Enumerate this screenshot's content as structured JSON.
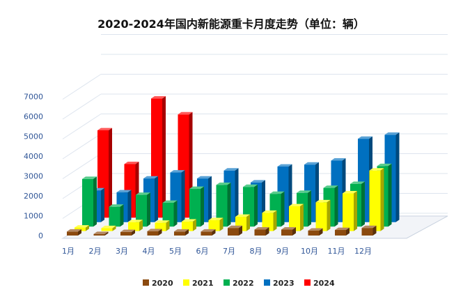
{
  "chart_data": {
    "type": "bar",
    "title": "2020-2024年国内新能源重卡月度走势（单位：辆）",
    "categories": [
      "1月",
      "2月",
      "3月",
      "4月",
      "5月",
      "6月",
      "7月",
      "8月",
      "9月",
      "10月",
      "11月",
      "12月"
    ],
    "yticks": [
      "0",
      "1000",
      "2000",
      "3000",
      "4000",
      "5000",
      "6000",
      "7000"
    ],
    "ylim": [
      0,
      7000
    ],
    "grid": true,
    "legend_position": "bottom",
    "series": [
      {
        "name": "2020",
        "color": "#8b4a0f",
        "values": [
          200,
          80,
          180,
          220,
          200,
          200,
          380,
          300,
          300,
          250,
          280,
          380
        ]
      },
      {
        "name": "2021",
        "color": "#ffff00",
        "values": [
          180,
          150,
          450,
          420,
          480,
          550,
          720,
          920,
          1250,
          1450,
          1900,
          3050
        ]
      },
      {
        "name": "2022",
        "color": "#00b050",
        "values": [
          2400,
          1000,
          1600,
          1200,
          1900,
          2100,
          2000,
          1650,
          1700,
          1950,
          2150,
          3050
        ]
      },
      {
        "name": "2023",
        "color": "#0070c0",
        "values": [
          1600,
          1500,
          2200,
          2500,
          2200,
          2600,
          2000,
          2800,
          2900,
          3100,
          4200,
          4400
        ]
      },
      {
        "name": "2024",
        "color": "#ff0000",
        "values": [
          4400,
          2700,
          6000,
          5200,
          null,
          null,
          null,
          null,
          null,
          null,
          null,
          null
        ]
      }
    ]
  }
}
